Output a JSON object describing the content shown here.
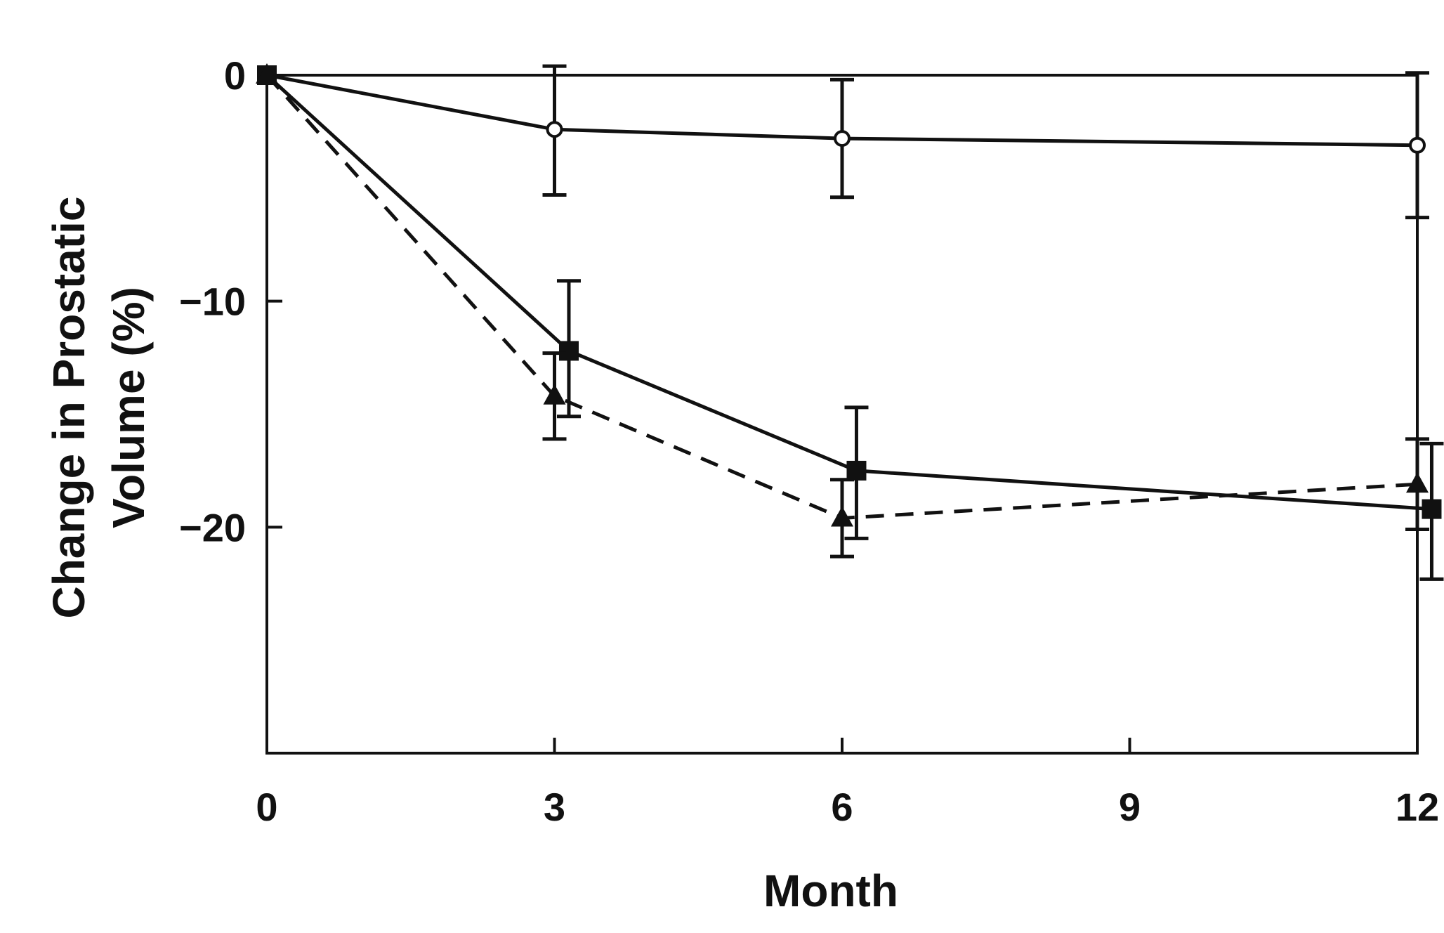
{
  "chart_data": {
    "type": "line",
    "title": "",
    "xlabel": "Month",
    "ylabel_lines": [
      "Change in Prostatic",
      "Volume (%)"
    ],
    "xlim": [
      0,
      12
    ],
    "ylim": [
      -30,
      0
    ],
    "xticks": [
      0,
      3,
      6,
      9,
      12
    ],
    "xtick_labels": [
      "0",
      "3",
      "6",
      "9",
      "12"
    ],
    "yticks": [
      0,
      -10,
      -20
    ],
    "ytick_labels": [
      "0",
      "−10",
      "−20"
    ],
    "grid": false,
    "series": [
      {
        "marker": "open-circle",
        "line_style": "solid",
        "points": [
          {
            "x": 0,
            "y": 0,
            "err_low": 0,
            "err_high": 0
          },
          {
            "x": 3,
            "y": -2.4,
            "err_low": -5.3,
            "err_high": 0.4
          },
          {
            "x": 6,
            "y": -2.8,
            "err_low": -5.4,
            "err_high": -0.2
          },
          {
            "x": 12,
            "y": -3.1,
            "err_low": -6.3,
            "err_high": 0.1
          }
        ]
      },
      {
        "marker": "filled-square",
        "line_style": "solid",
        "points": [
          {
            "x": 0,
            "y": 0,
            "err_low": 0,
            "err_high": 0
          },
          {
            "x": 3.15,
            "y": -12.2,
            "err_low": -15.1,
            "err_high": -9.1
          },
          {
            "x": 6.15,
            "y": -17.5,
            "err_low": -20.5,
            "err_high": -14.7
          },
          {
            "x": 12.15,
            "y": -19.2,
            "err_low": -22.3,
            "err_high": -16.3
          }
        ]
      },
      {
        "marker": "filled-triangle",
        "line_style": "dashed",
        "points": [
          {
            "x": 0,
            "y": 0,
            "err_low": 0,
            "err_high": 0
          },
          {
            "x": 3,
            "y": -14.2,
            "err_low": -16.1,
            "err_high": -12.3
          },
          {
            "x": 6,
            "y": -19.6,
            "err_low": -21.3,
            "err_high": -17.9
          },
          {
            "x": 12,
            "y": -18.1,
            "err_low": -20.1,
            "err_high": -16.1
          }
        ]
      }
    ]
  }
}
